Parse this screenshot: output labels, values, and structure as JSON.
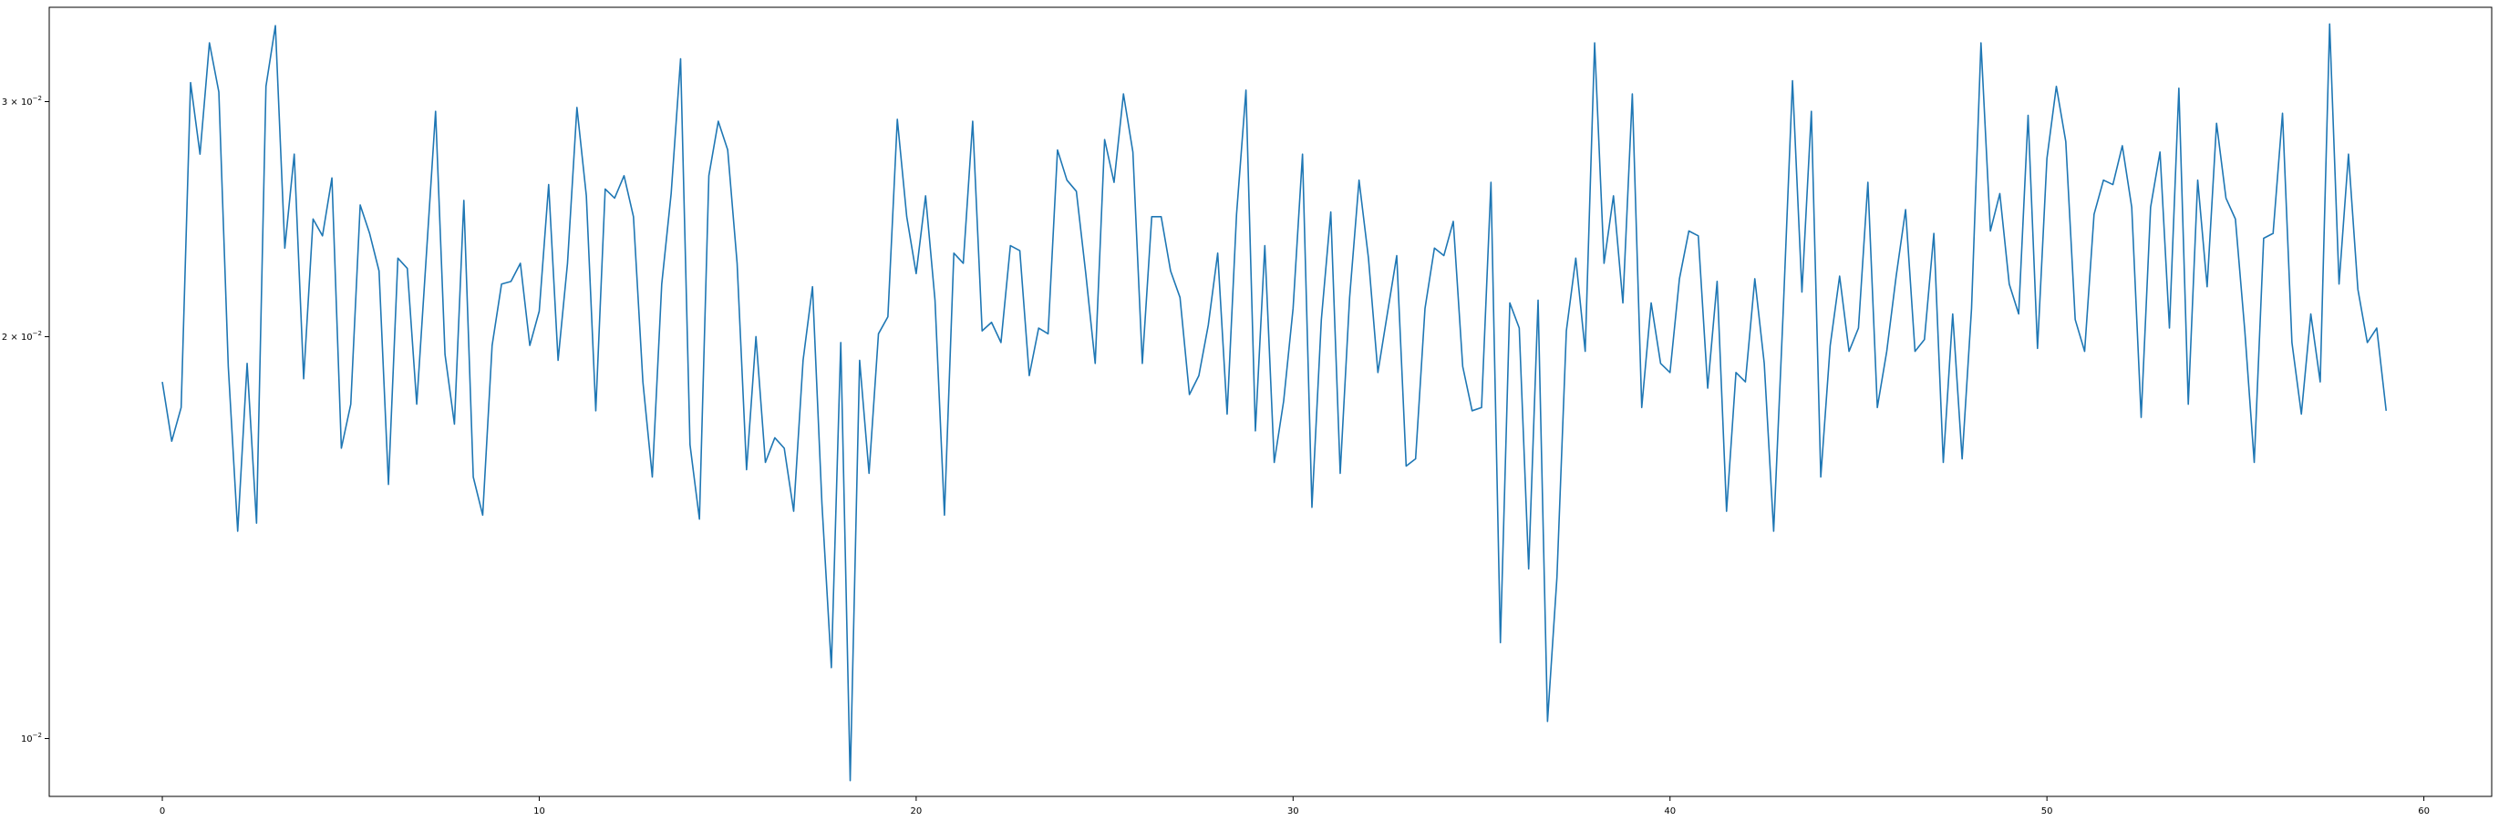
{
  "chart_data": {
    "type": "line",
    "title": "",
    "xlabel": "",
    "ylabel": "",
    "xscale": "linear",
    "yscale": "log",
    "xlim": [
      -3,
      61.8
    ],
    "ylim": [
      0.00905,
      0.0353
    ],
    "xticks": [
      {
        "value": 0,
        "label": "0"
      },
      {
        "value": 10,
        "label": "10"
      },
      {
        "value": 20,
        "label": "20"
      },
      {
        "value": 30,
        "label": "30"
      },
      {
        "value": 40,
        "label": "40"
      },
      {
        "value": 50,
        "label": "50"
      },
      {
        "value": 60,
        "label": "60"
      }
    ],
    "yticks": [
      {
        "value": 0.01,
        "base": "10",
        "exp": "−2",
        "mantissa": ""
      },
      {
        "value": 0.02,
        "base": "10",
        "exp": "−2",
        "mantissa": "2 × "
      },
      {
        "value": 0.03,
        "base": "10",
        "exp": "−2",
        "mantissa": "3 × "
      }
    ],
    "grid": false,
    "legend": false,
    "series": [
      {
        "color": "#1f77b4",
        "x_start": 0,
        "x_step": 0.25,
        "values": [
          0.0185,
          0.0167,
          0.0177,
          0.031,
          0.0274,
          0.0332,
          0.0305,
          0.019,
          0.0143,
          0.0191,
          0.0145,
          0.0308,
          0.0342,
          0.0233,
          0.0274,
          0.0186,
          0.0245,
          0.0238,
          0.0263,
          0.0165,
          0.0178,
          0.0251,
          0.0239,
          0.0224,
          0.0155,
          0.0229,
          0.0225,
          0.0178,
          0.0229,
          0.0295,
          0.0194,
          0.0172,
          0.0253,
          0.0157,
          0.0147,
          0.0197,
          0.0219,
          0.022,
          0.0227,
          0.0197,
          0.0209,
          0.026,
          0.0192,
          0.0227,
          0.0297,
          0.0255,
          0.0176,
          0.0258,
          0.0254,
          0.0264,
          0.0246,
          0.0185,
          0.0157,
          0.0219,
          0.0256,
          0.0323,
          0.0166,
          0.0146,
          0.0264,
          0.029,
          0.0276,
          0.0227,
          0.0159,
          0.02,
          0.0161,
          0.0168,
          0.0165,
          0.0148,
          0.0192,
          0.0218,
          0.015,
          0.0113,
          0.0198,
          0.0093,
          0.0192,
          0.0158,
          0.0201,
          0.0207,
          0.0291,
          0.0246,
          0.0223,
          0.0255,
          0.0213,
          0.0147,
          0.0231,
          0.0227,
          0.029,
          0.0202,
          0.0205,
          0.0198,
          0.0234,
          0.0232,
          0.0187,
          0.0203,
          0.0201,
          0.0276,
          0.0262,
          0.0257,
          0.0223,
          0.0191,
          0.0281,
          0.0261,
          0.0304,
          0.0275,
          0.0191,
          0.0246,
          0.0246,
          0.0224,
          0.0214,
          0.0181,
          0.0187,
          0.0204,
          0.0231,
          0.0175,
          0.0247,
          0.0306,
          0.017,
          0.0234,
          0.0161,
          0.0179,
          0.021,
          0.0274,
          0.0149,
          0.0206,
          0.0248,
          0.0158,
          0.0214,
          0.0262,
          0.0229,
          0.0188,
          0.0208,
          0.023,
          0.016,
          0.0162,
          0.021,
          0.0233,
          0.023,
          0.0244,
          0.019,
          0.0176,
          0.0177,
          0.0261,
          0.0118,
          0.0212,
          0.0203,
          0.0134,
          0.0213,
          0.0103,
          0.0132,
          0.0202,
          0.0229,
          0.0195,
          0.0332,
          0.0227,
          0.0255,
          0.0212,
          0.0304,
          0.0177,
          0.0212,
          0.0191,
          0.0188,
          0.0221,
          0.024,
          0.0238,
          0.0183,
          0.022,
          0.0148,
          0.0188,
          0.0185,
          0.0221,
          0.0191,
          0.0143,
          0.0208,
          0.0311,
          0.0216,
          0.0295,
          0.0157,
          0.0197,
          0.0222,
          0.0195,
          0.0203,
          0.0261,
          0.0177,
          0.0195,
          0.0222,
          0.0249,
          0.0195,
          0.0199,
          0.0239,
          0.0161,
          0.0208,
          0.0162,
          0.021,
          0.0332,
          0.024,
          0.0256,
          0.0219,
          0.0208,
          0.0293,
          0.0196,
          0.0272,
          0.0308,
          0.028,
          0.0206,
          0.0195,
          0.0247,
          0.0262,
          0.026,
          0.0278,
          0.025,
          0.0174,
          0.025,
          0.0275,
          0.0203,
          0.0307,
          0.0178,
          0.0262,
          0.0218,
          0.0289,
          0.0254,
          0.0245,
          0.0202,
          0.0161,
          0.0237,
          0.0239,
          0.0294,
          0.0198,
          0.0175,
          0.0208,
          0.0185,
          0.0343,
          0.0219,
          0.0274,
          0.0217,
          0.0198,
          0.0203,
          0.0176
        ]
      }
    ]
  }
}
